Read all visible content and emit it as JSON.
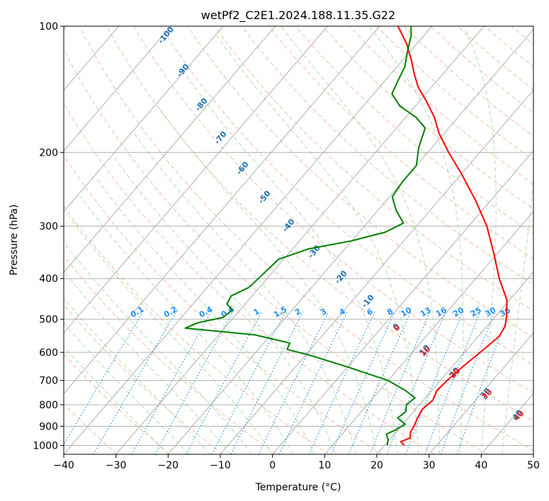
{
  "chart_data": {
    "type": "line",
    "subtype": "skew-T log-P diagram",
    "title": "wetPf2_C2E1.2024.188.11.35.G22",
    "xlabel": "Temperature (°C)",
    "ylabel": "Pressure (hPa)",
    "xlim": [
      -40,
      50
    ],
    "ylim": [
      1050,
      100
    ],
    "y_scale": "log",
    "x_ticks": [
      -40,
      -30,
      -20,
      -10,
      0,
      10,
      20,
      30,
      40,
      50
    ],
    "x_tick_labels": [
      "−40",
      "−30",
      "−20",
      "−10",
      "0",
      "10",
      "20",
      "30",
      "40",
      "50"
    ],
    "y_ticks": [
      100,
      200,
      300,
      400,
      500,
      600,
      700,
      800,
      900,
      1000
    ],
    "y_tick_labels": [
      "100",
      "200",
      "300",
      "400",
      "500",
      "600",
      "700",
      "800",
      "900",
      "1000"
    ],
    "grid": true,
    "colors": {
      "temperature": "#ff0000",
      "dewpoint": "#008000",
      "dry_adiabats": "#f4a582",
      "moist_adiabats": "#8fd18f",
      "mixing_ratio": "#1e90ff",
      "grid": "#b0b0b0"
    },
    "series": [
      {
        "role": "temperature",
        "points": [
          {
            "p": 1000,
            "t": 23.8
          },
          {
            "p": 980,
            "t": 22.5
          },
          {
            "p": 960,
            "t": 23.7
          },
          {
            "p": 930,
            "t": 22.8
          },
          {
            "p": 900,
            "t": 22.5
          },
          {
            "p": 860,
            "t": 21.8
          },
          {
            "p": 820,
            "t": 21.3
          },
          {
            "p": 780,
            "t": 21.8
          },
          {
            "p": 740,
            "t": 21.0
          },
          {
            "p": 700,
            "t": 21.3
          },
          {
            "p": 650,
            "t": 22.0
          },
          {
            "p": 600,
            "t": 23.0
          },
          {
            "p": 550,
            "t": 24.0
          },
          {
            "p": 520,
            "t": 23.5
          },
          {
            "p": 490,
            "t": 22.0
          },
          {
            "p": 450,
            "t": 19.5
          },
          {
            "p": 400,
            "t": 14.5
          },
          {
            "p": 350,
            "t": 9.5
          },
          {
            "p": 300,
            "t": 3.5
          },
          {
            "p": 260,
            "t": -3.0
          },
          {
            "p": 225,
            "t": -10.0
          },
          {
            "p": 200,
            "t": -16.0
          },
          {
            "p": 180,
            "t": -21.0
          },
          {
            "p": 165,
            "t": -24.5
          },
          {
            "p": 150,
            "t": -29.0
          },
          {
            "p": 140,
            "t": -32.5
          },
          {
            "p": 130,
            "t": -35.5
          },
          {
            "p": 120,
            "t": -38.5
          },
          {
            "p": 110,
            "t": -42.0
          },
          {
            "p": 100,
            "t": -46.5
          }
        ]
      },
      {
        "role": "dewpoint",
        "points": [
          {
            "p": 1000,
            "t": 20.5
          },
          {
            "p": 970,
            "t": 19.8
          },
          {
            "p": 940,
            "t": 18.5
          },
          {
            "p": 920,
            "t": 19.5
          },
          {
            "p": 890,
            "t": 20.5
          },
          {
            "p": 860,
            "t": 18.0
          },
          {
            "p": 830,
            "t": 18.5
          },
          {
            "p": 800,
            "t": 17.5
          },
          {
            "p": 770,
            "t": 18.0
          },
          {
            "p": 740,
            "t": 15.0
          },
          {
            "p": 700,
            "t": 10.0
          },
          {
            "p": 650,
            "t": 0.0
          },
          {
            "p": 610,
            "t": -9.0
          },
          {
            "p": 590,
            "t": -14.5
          },
          {
            "p": 570,
            "t": -15.0
          },
          {
            "p": 545,
            "t": -23.0
          },
          {
            "p": 525,
            "t": -37.5
          },
          {
            "p": 510,
            "t": -36.0
          },
          {
            "p": 495,
            "t": -32.0
          },
          {
            "p": 475,
            "t": -31.5
          },
          {
            "p": 460,
            "t": -33.5
          },
          {
            "p": 440,
            "t": -34.0
          },
          {
            "p": 420,
            "t": -32.0
          },
          {
            "p": 390,
            "t": -31.5
          },
          {
            "p": 360,
            "t": -31.0
          },
          {
            "p": 340,
            "t": -27.0
          },
          {
            "p": 325,
            "t": -20.0
          },
          {
            "p": 310,
            "t": -15.0
          },
          {
            "p": 295,
            "t": -13.0
          },
          {
            "p": 275,
            "t": -16.5
          },
          {
            "p": 255,
            "t": -19.5
          },
          {
            "p": 235,
            "t": -20.0
          },
          {
            "p": 215,
            "t": -20.0
          },
          {
            "p": 195,
            "t": -22.5
          },
          {
            "p": 175,
            "t": -24.5
          },
          {
            "p": 165,
            "t": -28.0
          },
          {
            "p": 155,
            "t": -33.0
          },
          {
            "p": 145,
            "t": -36.5
          },
          {
            "p": 135,
            "t": -37.5
          },
          {
            "p": 125,
            "t": -38.5
          },
          {
            "p": 115,
            "t": -40.5
          },
          {
            "p": 105,
            "t": -42.5
          },
          {
            "p": 100,
            "t": -44.0
          }
        ]
      }
    ],
    "dry_adiabat_labels": [
      "-100",
      "-90",
      "-80",
      "-70",
      "-60",
      "-50",
      "-40",
      "-30",
      "-20",
      "-10",
      "0",
      "10",
      "20",
      "30",
      "40"
    ],
    "mixing_ratio_labels": [
      "0.1",
      "0.2",
      "0.4",
      "0.6",
      "1",
      "1.5",
      "2",
      "3",
      "4",
      "6",
      "8",
      "10",
      "13",
      "16",
      "20",
      "25",
      "30",
      "36"
    ],
    "moist_adiabat_labels": [
      "0",
      "10",
      "20",
      "30",
      "40"
    ]
  }
}
